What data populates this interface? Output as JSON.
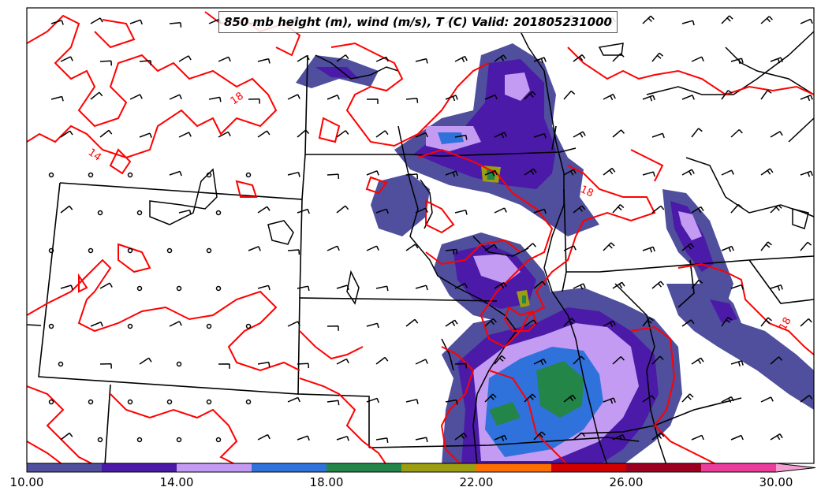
{
  "map": {
    "title": "850 mb height (m), wind (m/s), T (C) Valid: 201805231000",
    "contour_labels": [
      "18",
      "14",
      "18",
      "18"
    ],
    "isotherm_color": "#ff0000",
    "boundary_color": "#000000"
  },
  "colorbar": {
    "colors": [
      "#4f4f9d",
      "#4b1aa8",
      "#c39bf3",
      "#2f72dc",
      "#238548",
      "#9c9d11",
      "#fd6f00",
      "#d00000",
      "#9c0021",
      "#ea3d9c",
      "#f49fd1"
    ],
    "ticks": [
      "10.00",
      "14.00",
      "18.00",
      "22.00",
      "26.00",
      "30.00"
    ],
    "levels": [
      10,
      12,
      14,
      16,
      18,
      20,
      22,
      24,
      26,
      28,
      30
    ],
    "extend": "max"
  }
}
